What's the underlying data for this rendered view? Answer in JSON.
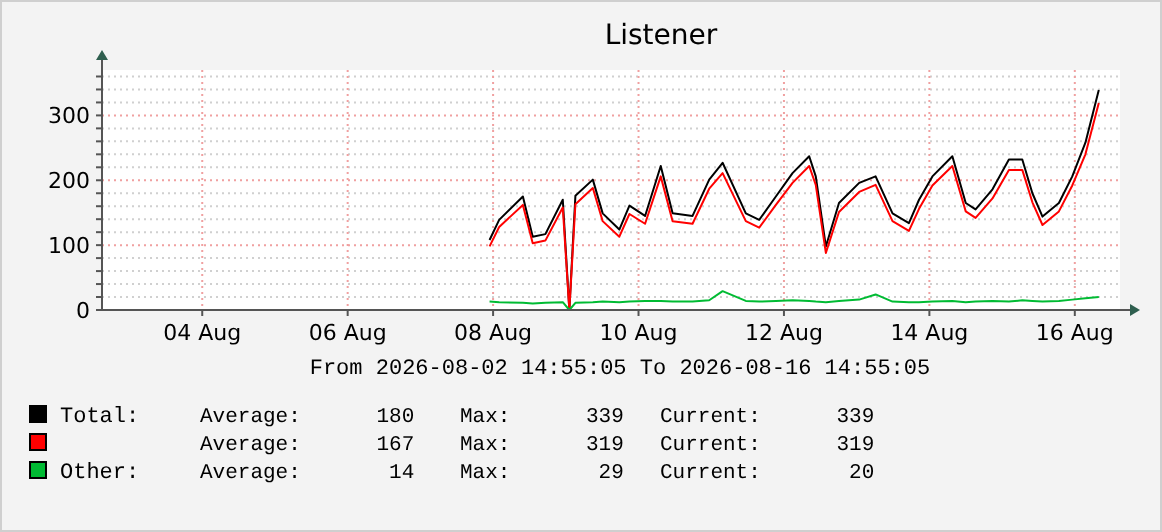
{
  "chart_data": {
    "type": "line",
    "title": "Listener",
    "xlim": [
      "2026-08-02T14:55",
      "2026-08-16T14:55"
    ],
    "xticks": [
      {
        "value": "2026-08-04T00:00",
        "label": "04 Aug"
      },
      {
        "value": "2026-08-06T00:00",
        "label": "06 Aug"
      },
      {
        "value": "2026-08-08T00:00",
        "label": "08 Aug"
      },
      {
        "value": "2026-08-10T00:00",
        "label": "10 Aug"
      },
      {
        "value": "2026-08-12T00:00",
        "label": "12 Aug"
      },
      {
        "value": "2026-08-14T00:00",
        "label": "14 Aug"
      },
      {
        "value": "2026-08-16T00:00",
        "label": "16 Aug"
      }
    ],
    "ylim": [
      0,
      370
    ],
    "yticks": [
      0,
      {
        "value": 20,
        "label": null
      },
      {
        "value": 40,
        "label": null
      },
      {
        "value": 60,
        "label": null
      },
      {
        "value": 80,
        "label": null
      },
      100,
      {
        "value": 120,
        "label": null
      },
      {
        "value": 140,
        "label": null
      },
      {
        "value": 160,
        "label": null
      },
      {
        "value": 180,
        "label": null
      },
      200,
      {
        "value": 220,
        "label": null
      },
      {
        "value": 240,
        "label": null
      },
      {
        "value": 260,
        "label": null
      },
      {
        "value": 280,
        "label": null
      },
      300,
      {
        "value": 320,
        "label": null
      },
      {
        "value": 340,
        "label": null
      },
      {
        "value": 360,
        "label": null
      }
    ],
    "grid": true,
    "legend": "bottom",
    "marker": "none",
    "line_style": "solid",
    "x": [
      "2026-08-07T22:50",
      "2026-08-08T02:00",
      "2026-08-08T09:50",
      "2026-08-08T13:05",
      "2026-08-08T17:15",
      "2026-08-08T23:00",
      "2026-08-09T01:10",
      "2026-08-09T03:10",
      "2026-08-09T08:55",
      "2026-08-09T12:10",
      "2026-08-09T17:40",
      "2026-08-09T21:00",
      "2026-08-10T02:10",
      "2026-08-10T07:20",
      "2026-08-10T11:15",
      "2026-08-10T17:50",
      "2026-08-10T23:20",
      "2026-08-11T03:45",
      "2026-08-11T11:25",
      "2026-08-11T15:50",
      "2026-08-11T21:20",
      "2026-08-12T02:50",
      "2026-08-12T08:20",
      "2026-08-12T10:30",
      "2026-08-12T13:50",
      "2026-08-12T18:10",
      "2026-08-13T00:50",
      "2026-08-13T06:15",
      "2026-08-13T11:50",
      "2026-08-13T17:15",
      "2026-08-13T20:35",
      "2026-08-14T01:00",
      "2026-08-14T07:35",
      "2026-08-14T12:00",
      "2026-08-14T15:15",
      "2026-08-14T20:50",
      "2026-08-15T02:15",
      "2026-08-15T06:40",
      "2026-08-15T10:00",
      "2026-08-15T13:20",
      "2026-08-15T18:45",
      "2026-08-15T23:10",
      "2026-08-16T03:30",
      "2026-08-16T07:55"
    ],
    "series": [
      {
        "name": "Total:",
        "color": "#000000",
        "values": [
          108,
          139,
          175,
          113,
          117,
          170,
          0,
          176,
          201,
          149,
          124,
          161,
          145,
          222,
          149,
          145,
          201,
          227,
          149,
          139,
          175,
          211,
          237,
          206,
          98,
          165,
          196,
          206,
          149,
          134,
          170,
          206,
          237,
          165,
          155,
          186,
          232,
          232,
          180,
          144,
          165,
          206,
          258,
          339
        ]
      },
      {
        "color": "#ff0000",
        "values": [
          98,
          128,
          162,
          103,
          107,
          158,
          0,
          163,
          188,
          137,
          113,
          148,
          133,
          206,
          137,
          133,
          187,
          211,
          137,
          127,
          162,
          196,
          222,
          193,
          88,
          151,
          182,
          193,
          137,
          122,
          156,
          192,
          222,
          152,
          142,
          172,
          216,
          216,
          166,
          131,
          152,
          192,
          240,
          319
        ]
      },
      {
        "name": "Other:",
        "color": "#00bb33",
        "values": [
          13,
          12,
          11,
          10,
          11,
          12,
          0,
          11,
          12,
          13,
          12,
          13,
          14,
          14,
          13,
          13,
          15,
          29,
          14,
          13,
          14,
          15,
          14,
          13,
          12,
          14,
          16,
          24,
          13,
          12,
          12,
          13,
          14,
          12,
          13,
          14,
          13,
          15,
          14,
          13,
          14,
          16,
          18,
          20
        ]
      }
    ],
    "annotations": [
      "From 2026-08-02 14:55:05 To 2026-08-16 14:55:05",
      "Average:      180",
      "Max:      339",
      "Current:      339",
      "Average:      167",
      "Max:      319",
      "Current:      319",
      "Average:       14",
      "Max:       29",
      "Current:       20"
    ]
  }
}
